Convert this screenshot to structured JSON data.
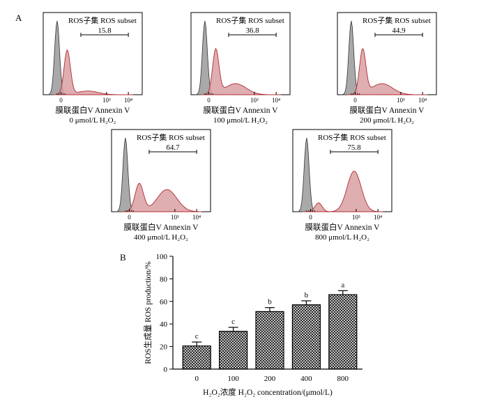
{
  "panel_labels": {
    "a": "A",
    "b": "B"
  },
  "colors": {
    "control_fill": "#a9a9a9",
    "control_stroke": "#333333",
    "ros_fill": "#d9a0a3",
    "ros_stroke": "#b02a30",
    "bar_hatch": "#1a1a1a"
  },
  "chart_data": [
    {
      "type": "histogram",
      "gate_header": "ROS子集  ROS subset",
      "gate_value": "15.8",
      "tick_labels": [
        "0",
        "10³",
        "10⁴"
      ],
      "xlabel": "膜联蛋白V Annexin V",
      "condition": "0 μmol/L H₂O₂",
      "ros_peak_log_position": 0.45,
      "ros_tail_level": "low"
    },
    {
      "type": "histogram",
      "gate_header": "ROS子集  ROS subset",
      "gate_value": "36.8",
      "tick_labels": [
        "0",
        "10³",
        "10⁴"
      ],
      "xlabel": "膜联蛋白V Annexin V",
      "condition": "100 μmol/L H₂O₂",
      "ros_peak_log_position": 0.6,
      "ros_tail_level": "medium"
    },
    {
      "type": "histogram",
      "gate_header": "ROS子集  ROS subset",
      "gate_value": "44.9",
      "tick_labels": [
        "0",
        "10³",
        "10⁴"
      ],
      "xlabel": "膜联蛋白V Annexin V",
      "condition": "200 μmol/L H₂O₂",
      "ros_peak_log_position": 0.7,
      "ros_tail_level": "medium"
    },
    {
      "type": "histogram",
      "gate_header": "ROS子集  ROS subset",
      "gate_value": "64.7",
      "tick_labels": [
        "0",
        "10³",
        "10⁴"
      ],
      "xlabel": "膜联蛋白V Annexin V",
      "condition": "400 μmol/L H₂O₂",
      "ros_peak_log_position": 0.9,
      "ros_tail_level": "high"
    },
    {
      "type": "histogram",
      "gate_header": "ROS子集  ROS subset",
      "gate_value": "75.8",
      "tick_labels": [
        "0",
        "10³",
        "10⁴"
      ],
      "xlabel": "膜联蛋白V Annexin V",
      "condition": "800 μmol/L H₂O₂",
      "ros_peak_log_position": 1.1,
      "ros_tail_level": "very-high"
    },
    {
      "type": "bar",
      "categories": [
        "0",
        "100",
        "200",
        "400",
        "800"
      ],
      "values": [
        20.5,
        33.5,
        51,
        57,
        66
      ],
      "errors": [
        3.5,
        3.5,
        3.5,
        3.5,
        3.5
      ],
      "significance": [
        "c",
        "c",
        "b",
        "b",
        "a"
      ],
      "xlabel": "H₂O₂浓度 H₂O₂ concentration/(μmol/L)",
      "ylabel": "ROS生成量 ROS production/%",
      "ylim": [
        0,
        100
      ],
      "yticks": [
        0,
        20,
        40,
        60,
        80,
        100
      ],
      "grid": false,
      "legend": "none"
    }
  ]
}
